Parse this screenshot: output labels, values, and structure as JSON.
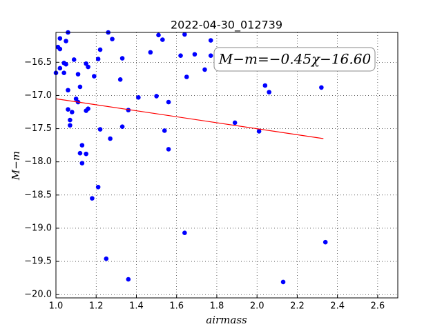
{
  "chart_data": {
    "type": "scatter",
    "title": "2022-04-30_012739",
    "xlabel": "airmass",
    "ylabel": "M−m",
    "annotation": "M−m=−0.45χ−16.60",
    "color": "#0000ff",
    "grid": true,
    "xlim": [
      1.0,
      2.7
    ],
    "ylim": [
      -20.05,
      -16.05
    ],
    "xticks": [
      {
        "value": 1.0,
        "label": "1.0"
      },
      {
        "value": 1.2,
        "label": "1.2"
      },
      {
        "value": 1.4,
        "label": "1.4"
      },
      {
        "value": 1.6,
        "label": "1.6"
      },
      {
        "value": 1.8,
        "label": "1.8"
      },
      {
        "value": 2.0,
        "label": "2.0"
      },
      {
        "value": 2.2,
        "label": "2.2"
      },
      {
        "value": 2.4,
        "label": "2.4"
      },
      {
        "value": 2.6,
        "label": "2.6"
      }
    ],
    "yticks": [
      {
        "value": -16.5,
        "label": "−16.5"
      },
      {
        "value": -17.0,
        "label": "−17.0"
      },
      {
        "value": -17.5,
        "label": "−17.5"
      },
      {
        "value": -18.0,
        "label": "−18.0"
      },
      {
        "value": -18.5,
        "label": "−18.5"
      },
      {
        "value": -19.0,
        "label": "−19.0"
      },
      {
        "value": -19.5,
        "label": "−19.5"
      },
      {
        "value": -20.0,
        "label": "−20.0"
      }
    ],
    "x": [
      1.0,
      1.02,
      1.01,
      1.02,
      1.06,
      1.05,
      1.02,
      1.04,
      1.05,
      1.04,
      1.09,
      1.06,
      1.11,
      1.12,
      1.1,
      1.11,
      1.06,
      1.08,
      1.07,
      1.07,
      1.15,
      1.16,
      1.19,
      1.21,
      1.22,
      1.15,
      1.16,
      1.22,
      1.13,
      1.12,
      1.15,
      1.13,
      1.21,
      1.18,
      1.26,
      1.28,
      1.33,
      1.32,
      1.27,
      1.33,
      1.36,
      1.41,
      1.47,
      1.51,
      1.53,
      1.5,
      1.56,
      1.54,
      1.56,
      1.62,
      1.64,
      1.65,
      1.69,
      1.74,
      1.77,
      1.77,
      1.64,
      1.25,
      1.36,
      1.89,
      2.01,
      2.04,
      2.06,
      2.32,
      2.34,
      2.13
    ],
    "values": [
      -16.66,
      -16.14,
      -16.27,
      -16.3,
      -16.05,
      -16.18,
      -16.59,
      -16.51,
      -16.53,
      -16.66,
      -16.46,
      -16.92,
      -16.68,
      -16.87,
      -17.05,
      -17.1,
      -17.21,
      -17.25,
      -17.37,
      -17.45,
      -16.52,
      -16.57,
      -16.71,
      -16.45,
      -16.31,
      -17.23,
      -17.2,
      -17.51,
      -17.75,
      -17.87,
      -17.88,
      -18.02,
      -18.38,
      -18.55,
      -16.05,
      -16.15,
      -16.44,
      -16.76,
      -17.65,
      -17.47,
      -17.22,
      -17.03,
      -16.35,
      -16.09,
      -16.16,
      -17.01,
      -17.1,
      -17.53,
      -17.81,
      -16.4,
      -16.08,
      -16.72,
      -16.38,
      -16.61,
      -16.17,
      -16.4,
      -19.07,
      -19.46,
      -19.77,
      -17.41,
      -17.54,
      -16.85,
      -16.95,
      -16.88,
      -19.21,
      -19.81
    ],
    "fit": {
      "color": "#ff0000",
      "x": [
        1.0,
        2.33
      ],
      "values": [
        -17.05,
        -17.65
      ]
    }
  }
}
